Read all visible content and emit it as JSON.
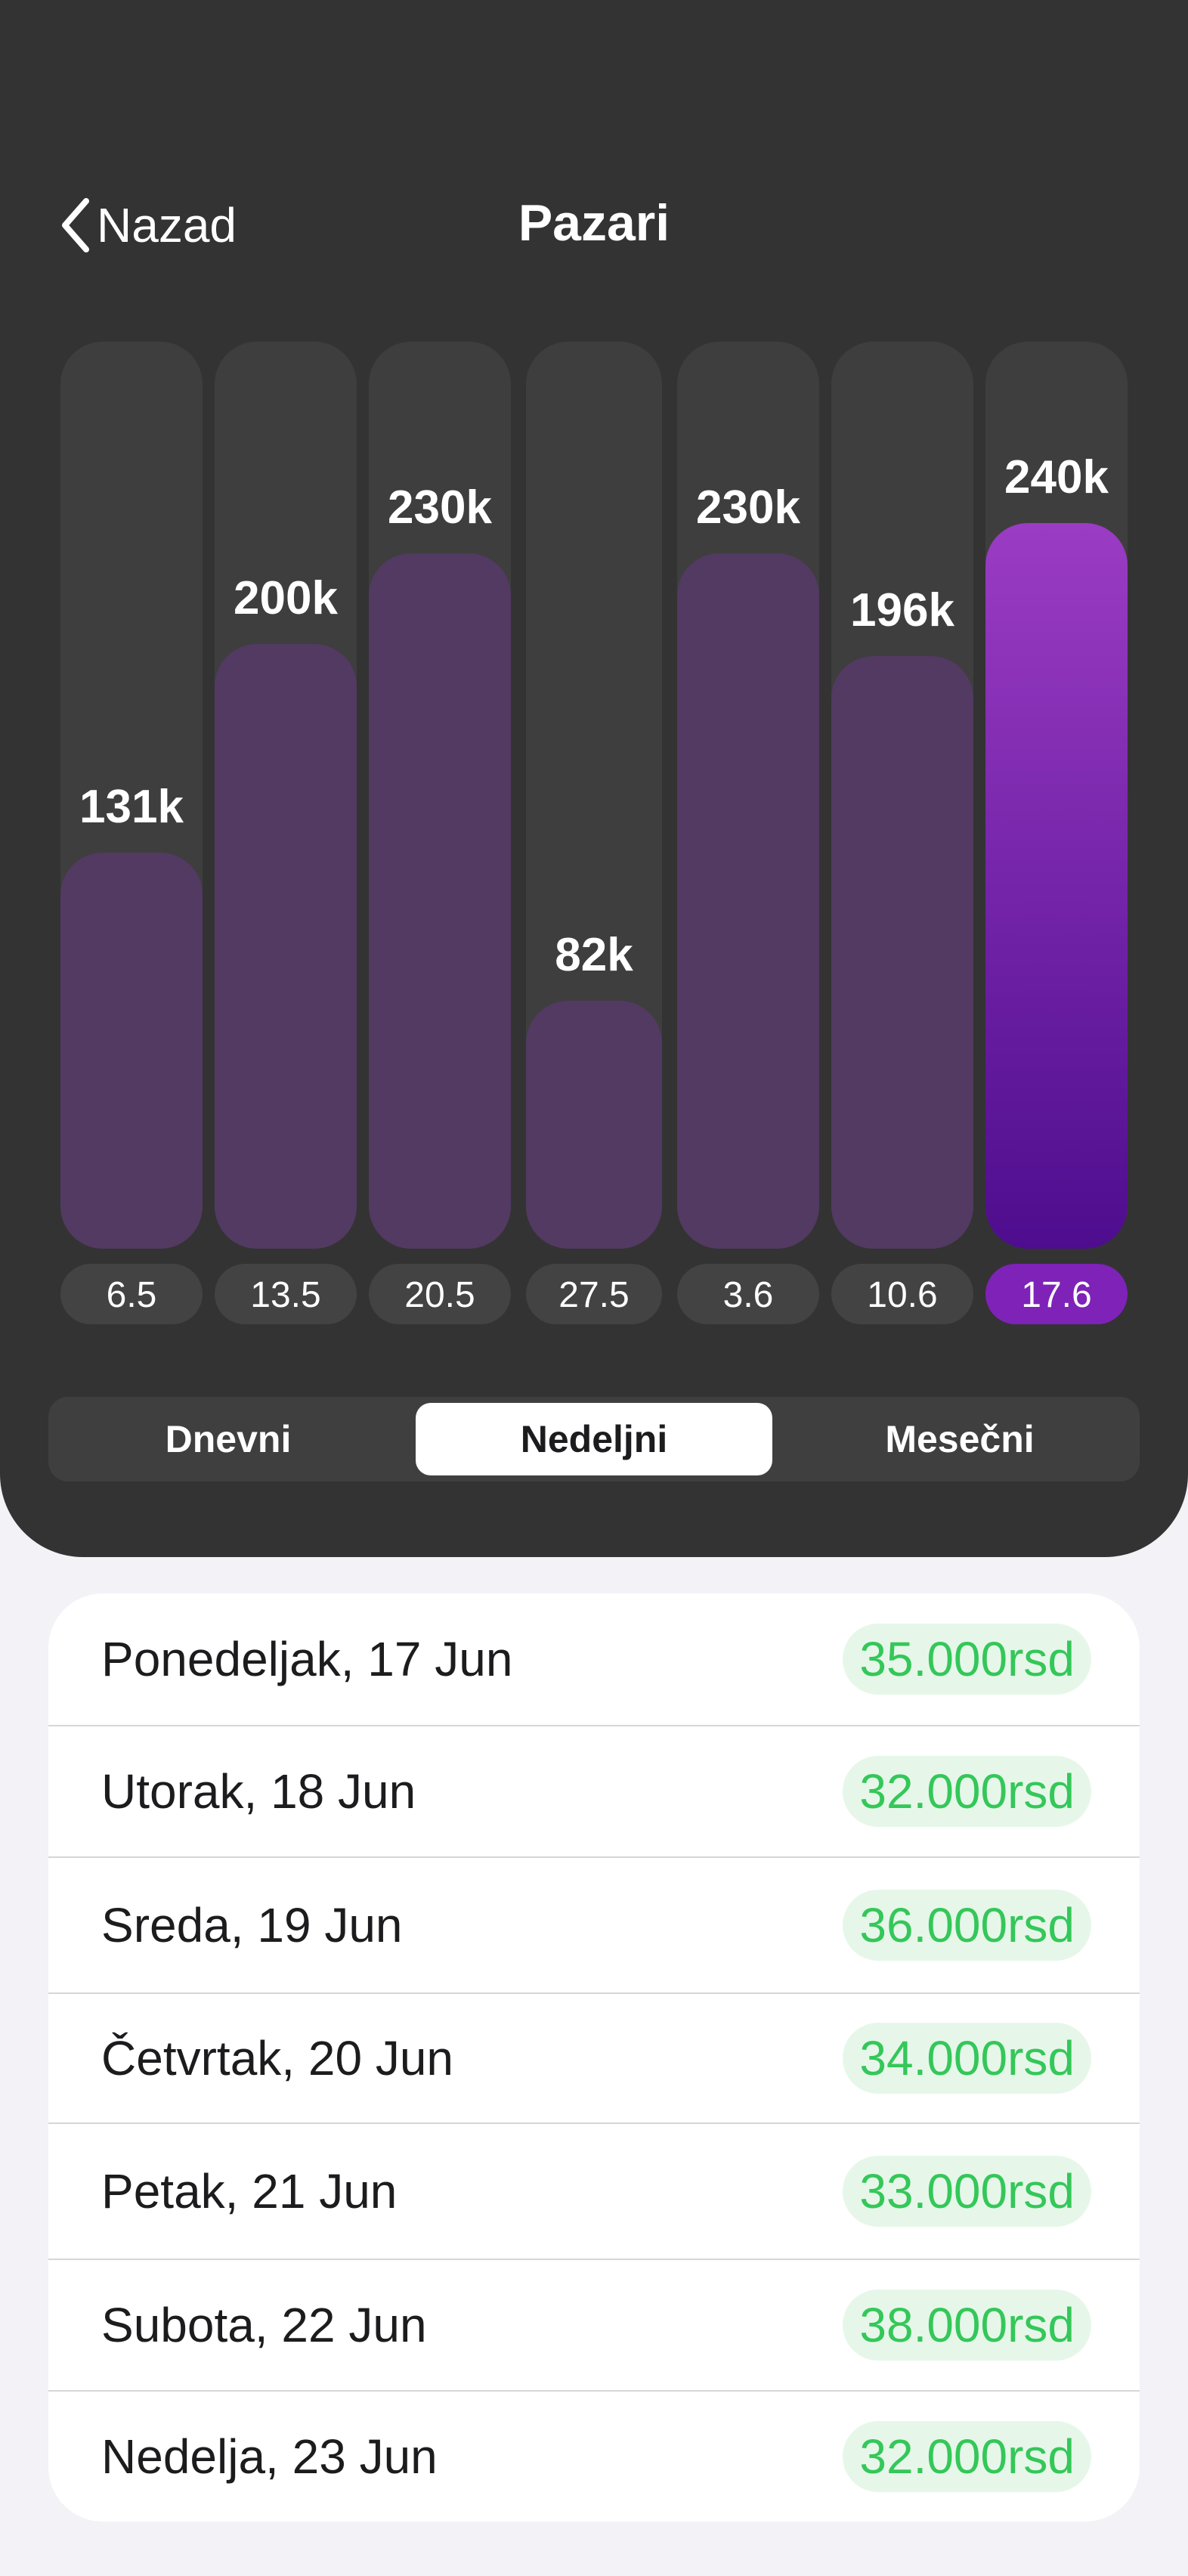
{
  "header": {
    "back_label": "Nazad",
    "title": "Pazari"
  },
  "chart_data": {
    "type": "bar",
    "categories": [
      "6.5",
      "13.5",
      "20.5",
      "27.5",
      "3.6",
      "10.6",
      "17.6"
    ],
    "values": [
      131,
      200,
      230,
      82,
      230,
      196,
      240
    ],
    "data_labels": [
      "131k",
      "200k",
      "230k",
      "82k",
      "230k",
      "196k",
      "240k"
    ],
    "ylim": [
      0,
      300
    ],
    "highlighted_index": 6,
    "colors": {
      "track": "#3E3E3E",
      "bar": "#523A62",
      "bar_highlight_top": "#9B3CC4",
      "bar_highlight_bottom": "#4E0D8E",
      "pill": "#434343",
      "pill_highlight": "#7E22B8"
    }
  },
  "segmented": {
    "items": [
      "Dnevni",
      "Nedeljni",
      "Mesečni"
    ],
    "active_index": 1
  },
  "list": {
    "rows": [
      {
        "label": "Ponedeljak, 17 Jun",
        "amount": "35.000rsd"
      },
      {
        "label": "Utorak, 18 Jun",
        "amount": "32.000rsd"
      },
      {
        "label": "Sreda, 19 Jun",
        "amount": "36.000rsd"
      },
      {
        "label": "Četvrtak, 20 Jun",
        "amount": "34.000rsd"
      },
      {
        "label": "Petak, 21 Jun",
        "amount": "33.000rsd"
      },
      {
        "label": "Subota, 22 Jun",
        "amount": "38.000rsd"
      },
      {
        "label": "Nedelja, 23 Jun",
        "amount": "32.000rsd"
      }
    ]
  }
}
